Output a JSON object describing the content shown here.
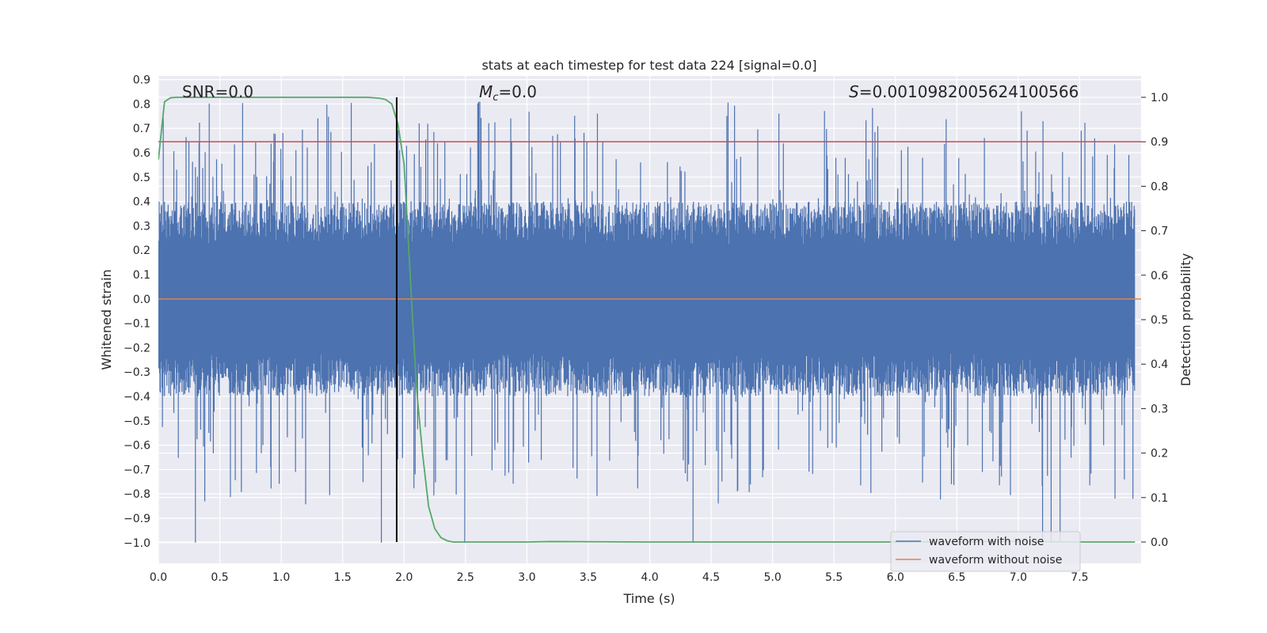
{
  "chart_data": {
    "type": "line",
    "title": "stats at each timestep for test data 224 [signal=0.0]",
    "xlabel": "Time (s)",
    "ylabel": "Whitened strain",
    "y2label": "Detection probability",
    "xlim": [
      0.0,
      8.0
    ],
    "ylim": [
      -1.085,
      0.915
    ],
    "y2lim": [
      -0.048,
      1.048
    ],
    "x_ticks": [
      0.0,
      0.5,
      1.0,
      1.5,
      2.0,
      2.5,
      3.0,
      3.5,
      4.0,
      4.5,
      5.0,
      5.5,
      6.0,
      6.5,
      7.0,
      7.5
    ],
    "x_tick_labels": [
      "0.0",
      "0.5",
      "1.0",
      "1.5",
      "2.0",
      "2.5",
      "3.0",
      "3.5",
      "4.0",
      "4.5",
      "5.0",
      "5.5",
      "6.0",
      "6.5",
      "7.0",
      "7.5"
    ],
    "y_ticks": [
      0.9,
      0.8,
      0.7,
      0.6,
      0.5,
      0.4,
      0.3,
      0.2,
      0.1,
      0.0,
      -0.1,
      -0.2,
      -0.3,
      -0.4,
      -0.5,
      -0.6,
      -0.7,
      -0.8,
      -0.9,
      -1.0
    ],
    "y_tick_labels": [
      "0.9",
      "0.8",
      "0.7",
      "0.6",
      "0.5",
      "0.4",
      "0.3",
      "0.2",
      "0.1",
      "0.0",
      "−0.1",
      "−0.2",
      "−0.3",
      "−0.4",
      "−0.5",
      "−0.6",
      "−0.7",
      "−0.8",
      "−0.9",
      "−1.0"
    ],
    "y2_ticks": [
      1.0,
      0.9,
      0.8,
      0.7,
      0.6,
      0.5,
      0.4,
      0.3,
      0.2,
      0.1,
      0.0
    ],
    "y2_tick_labels": [
      "1.0",
      "0.9",
      "0.8",
      "0.7",
      "0.6",
      "0.5",
      "0.4",
      "0.3",
      "0.2",
      "0.1",
      "0.0"
    ],
    "annotations": {
      "snr_text": "SNR=0.0",
      "mc_symbol": "M",
      "mc_subscript": "c",
      "mc_value": "=0.0",
      "s_symbol": "S",
      "s_value": "=0.0010982005624100566"
    },
    "series": [
      {
        "name": "waveform with noise",
        "axis": "left",
        "color": "#4c72b0",
        "description": "dense noise signal, roughly ±0.3 core, peaks to about ±0.8",
        "envelope_top": 0.45,
        "envelope_bottom": -0.45,
        "peak_top": 0.81,
        "peak_bottom": -1.0
      },
      {
        "name": "waveform without noise",
        "axis": "left",
        "color": "#dd8452",
        "x": [
          0.0,
          8.0
        ],
        "y": [
          0.0,
          0.0
        ]
      },
      {
        "name": "detection probability",
        "axis": "right",
        "color": "#55a868",
        "x": [
          0.0,
          0.05,
          0.1,
          0.15,
          0.2,
          0.5,
          1.0,
          1.5,
          1.7,
          1.8,
          1.85,
          1.9,
          1.95,
          2.0,
          2.05,
          2.1,
          2.15,
          2.2,
          2.25,
          2.3,
          2.35,
          2.4,
          2.5,
          3.0,
          3.2,
          4.0,
          5.0,
          6.0,
          7.0,
          7.5,
          7.95
        ],
        "y": [
          0.86,
          0.99,
          0.999,
          1.0,
          1.0,
          1.0,
          1.0,
          1.0,
          1.0,
          0.998,
          0.995,
          0.985,
          0.94,
          0.85,
          0.6,
          0.35,
          0.2,
          0.08,
          0.03,
          0.01,
          0.003,
          0.0,
          0.0,
          0.0,
          0.001,
          0.0,
          0.0,
          0.0,
          0.001,
          0.0,
          0.0
        ]
      }
    ],
    "threshold": {
      "axis": "right",
      "value": 0.9,
      "color": "#c44e52"
    },
    "marker_line": {
      "x": 1.94,
      "color": "#000000",
      "y2_from": 0.0,
      "y2_to": 1.0
    },
    "legend": {
      "position": "bottom-right",
      "entries": [
        {
          "label": "waveform with noise",
          "color": "#4c72b0"
        },
        {
          "label": "waveform without noise",
          "color": "#dd8452"
        }
      ]
    }
  }
}
